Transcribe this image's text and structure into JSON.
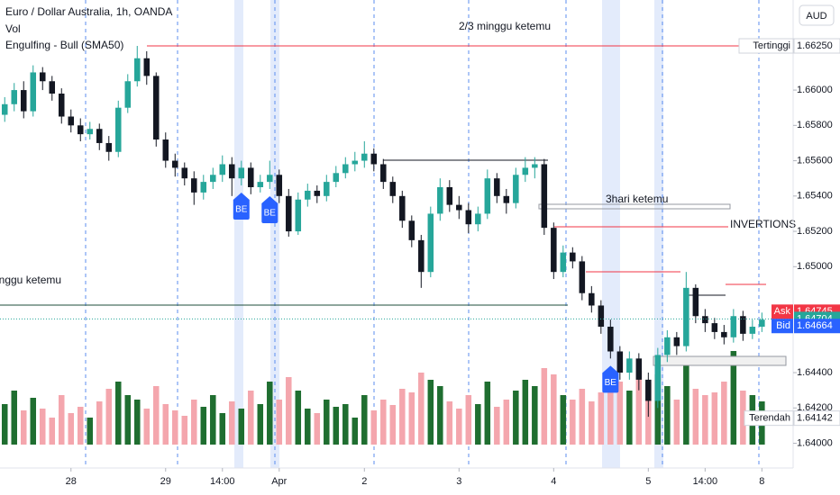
{
  "chart_data": {
    "type": "candlestick",
    "title": "Euro / Dollar Australia, 1h, OANDA",
    "indicators": [
      "Vol",
      "Engulfing - Bull (SMA50)"
    ],
    "currency": "AUD",
    "up_color": "#26a69a",
    "down_color": "#131722",
    "volume_up_color": "#1f6e30",
    "volume_down_color": "#f4a6ad",
    "xlim": [
      -0.5,
      83.3
    ],
    "ylim": [
      1.6386,
      1.6651
    ],
    "volume_lim": [
      0,
      200
    ],
    "yticks": [
      {
        "value": 1.66,
        "label": "1.66000"
      },
      {
        "value": 1.658,
        "label": "1.65800"
      },
      {
        "value": 1.656,
        "label": "1.65600"
      },
      {
        "value": 1.654,
        "label": "1.65400"
      },
      {
        "value": 1.652,
        "label": "1.65200"
      },
      {
        "value": 1.65,
        "label": "1.65000"
      },
      {
        "value": 1.644,
        "label": "1.64400"
      },
      {
        "value": 1.642,
        "label": "1.64200"
      },
      {
        "value": 1.64,
        "label": "1.64000"
      }
    ],
    "xticks": [
      {
        "value": 7,
        "label": "28"
      },
      {
        "value": 17,
        "label": "29"
      },
      {
        "value": 23,
        "label": "14:00"
      },
      {
        "value": 29,
        "label": "Apr"
      },
      {
        "value": 38,
        "label": "2"
      },
      {
        "value": 48,
        "label": "3"
      },
      {
        "value": 58,
        "label": "4"
      },
      {
        "value": 68,
        "label": "5"
      },
      {
        "value": 74,
        "label": "14:00"
      },
      {
        "value": 80,
        "label": "8"
      }
    ],
    "open": [
      1.6586,
      1.6592,
      1.66,
      1.6588,
      1.661,
      1.6605,
      1.6598,
      1.6585,
      1.658,
      1.6575,
      1.6578,
      1.657,
      1.6565,
      1.659,
      1.6605,
      1.6618,
      1.6608,
      1.6572,
      1.656,
      1.6556,
      1.655,
      1.6542,
      1.6548,
      1.6552,
      1.6558,
      1.655,
      1.6556,
      1.6545,
      1.6548,
      1.6552,
      1.654,
      1.652,
      1.6538,
      1.6543,
      1.654,
      1.6548,
      1.6553,
      1.6558,
      1.656,
      1.6564,
      1.6558,
      1.6548,
      1.654,
      1.6526,
      1.6515,
      1.6497,
      1.653,
      1.6545,
      1.6535,
      1.6532,
      1.6524,
      1.653,
      1.655,
      1.654,
      1.6536,
      1.6552,
      1.6556,
      1.6558,
      1.6522,
      1.6497,
      1.6508,
      1.6503,
      1.6485,
      1.6478,
      1.6466,
      1.6452,
      1.644,
      1.6448,
      1.6436,
      1.6424,
      1.645,
      1.646,
      1.6455,
      1.6488,
      1.6472,
      1.6468,
      1.6463,
      1.646,
      1.6472,
      1.6462,
      1.6466
    ],
    "high": [
      1.6596,
      1.6604,
      1.6605,
      1.6614,
      1.6613,
      1.6608,
      1.6601,
      1.6589,
      1.6584,
      1.6582,
      1.6581,
      1.6574,
      1.6594,
      1.6609,
      1.6625,
      1.6622,
      1.661,
      1.6576,
      1.6564,
      1.6559,
      1.6554,
      1.6552,
      1.6556,
      1.6563,
      1.6562,
      1.656,
      1.6559,
      1.6552,
      1.656,
      1.6555,
      1.6544,
      1.6542,
      1.6547,
      1.6546,
      1.6552,
      1.6557,
      1.6562,
      1.6565,
      1.6571,
      1.6567,
      1.6561,
      1.6551,
      1.6543,
      1.6529,
      1.6518,
      1.6534,
      1.655,
      1.6549,
      1.654,
      1.6536,
      1.6534,
      1.6555,
      1.6553,
      1.6544,
      1.6556,
      1.6562,
      1.6562,
      1.6561,
      1.6525,
      1.6512,
      1.6511,
      1.6506,
      1.6489,
      1.6481,
      1.647,
      1.6455,
      1.6452,
      1.6451,
      1.644,
      1.6454,
      1.6464,
      1.6463,
      1.6497,
      1.649,
      1.6476,
      1.6471,
      1.6467,
      1.6476,
      1.6475,
      1.647,
      1.6474
    ],
    "low": [
      1.6582,
      1.6588,
      1.6584,
      1.6585,
      1.66,
      1.6594,
      1.6581,
      1.6576,
      1.6571,
      1.6572,
      1.6566,
      1.656,
      1.6562,
      1.6587,
      1.6602,
      1.6603,
      1.6568,
      1.6556,
      1.6551,
      1.6546,
      1.6535,
      1.6538,
      1.6544,
      1.6548,
      1.654,
      1.6546,
      1.6541,
      1.6542,
      1.6544,
      1.6536,
      1.6517,
      1.6518,
      1.6534,
      1.6536,
      1.6537,
      1.6545,
      1.655,
      1.6554,
      1.6556,
      1.6554,
      1.6544,
      1.6536,
      1.6522,
      1.6511,
      1.6488,
      1.6494,
      1.6526,
      1.6531,
      1.6527,
      1.6519,
      1.652,
      1.6527,
      1.6536,
      1.653,
      1.6533,
      1.6548,
      1.655,
      1.6518,
      1.6493,
      1.6494,
      1.6499,
      1.6481,
      1.6474,
      1.6462,
      1.6448,
      1.6436,
      1.6436,
      1.643,
      1.6415,
      1.642,
      1.6446,
      1.645,
      1.6452,
      1.6468,
      1.6463,
      1.6459,
      1.6456,
      1.6457,
      1.6458,
      1.6459,
      1.6463
    ],
    "close": [
      1.6592,
      1.66,
      1.6588,
      1.661,
      1.6605,
      1.6598,
      1.6585,
      1.658,
      1.6575,
      1.6578,
      1.657,
      1.6565,
      1.659,
      1.6605,
      1.6618,
      1.6608,
      1.6572,
      1.656,
      1.6556,
      1.655,
      1.6542,
      1.6548,
      1.6552,
      1.6558,
      1.655,
      1.6556,
      1.6545,
      1.6548,
      1.6552,
      1.654,
      1.652,
      1.6538,
      1.6543,
      1.654,
      1.6548,
      1.6553,
      1.6558,
      1.656,
      1.6564,
      1.6558,
      1.6548,
      1.654,
      1.6526,
      1.6515,
      1.6497,
      1.653,
      1.6545,
      1.6535,
      1.6532,
      1.6524,
      1.653,
      1.655,
      1.654,
      1.6536,
      1.6552,
      1.6556,
      1.6558,
      1.6522,
      1.6497,
      1.6508,
      1.6503,
      1.6485,
      1.6478,
      1.6466,
      1.6452,
      1.644,
      1.6448,
      1.6436,
      1.6424,
      1.645,
      1.646,
      1.6455,
      1.6488,
      1.6472,
      1.6468,
      1.6463,
      1.646,
      1.6472,
      1.6462,
      1.6466,
      1.647
    ],
    "volume": [
      45,
      60,
      38,
      52,
      40,
      30,
      55,
      35,
      42,
      30,
      48,
      62,
      70,
      55,
      50,
      40,
      65,
      45,
      38,
      32,
      50,
      42,
      55,
      35,
      48,
      40,
      60,
      45,
      70,
      50,
      75,
      60,
      40,
      35,
      50,
      42,
      45,
      30,
      55,
      38,
      50,
      44,
      62,
      58,
      80,
      72,
      65,
      48,
      40,
      55,
      45,
      70,
      42,
      50,
      60,
      72,
      65,
      85,
      78,
      55,
      50,
      62,
      48,
      58,
      75,
      70,
      60,
      82,
      68,
      78,
      65,
      50,
      88,
      62,
      55,
      58,
      70,
      104,
      60,
      55,
      48
    ],
    "price_labels": [
      {
        "name": "Tertinggi",
        "value": 1.6625,
        "label": "1.66250",
        "color": "#ffffff"
      },
      {
        "name": "Ask",
        "value": 1.64745,
        "label": "1.64745",
        "color": "#f23645"
      },
      {
        "value": 1.64704,
        "label": "1.64704",
        "color": "#26a69a"
      },
      {
        "name": "Bid",
        "value": 1.64664,
        "label": "1.64664",
        "color": "#2962ff"
      },
      {
        "name": "Terendah",
        "value": 1.64142,
        "label": "1.64142",
        "color": "#ffffff"
      }
    ],
    "signals": [
      {
        "label": "BE",
        "index": 25
      },
      {
        "label": "BE",
        "index": 28
      },
      {
        "label": "BE",
        "index": 64
      }
    ],
    "annotations": [
      "2/3 minggu ketemu",
      "3hari ketemu",
      "INVERTIONS",
      "minggu ketemu"
    ]
  }
}
